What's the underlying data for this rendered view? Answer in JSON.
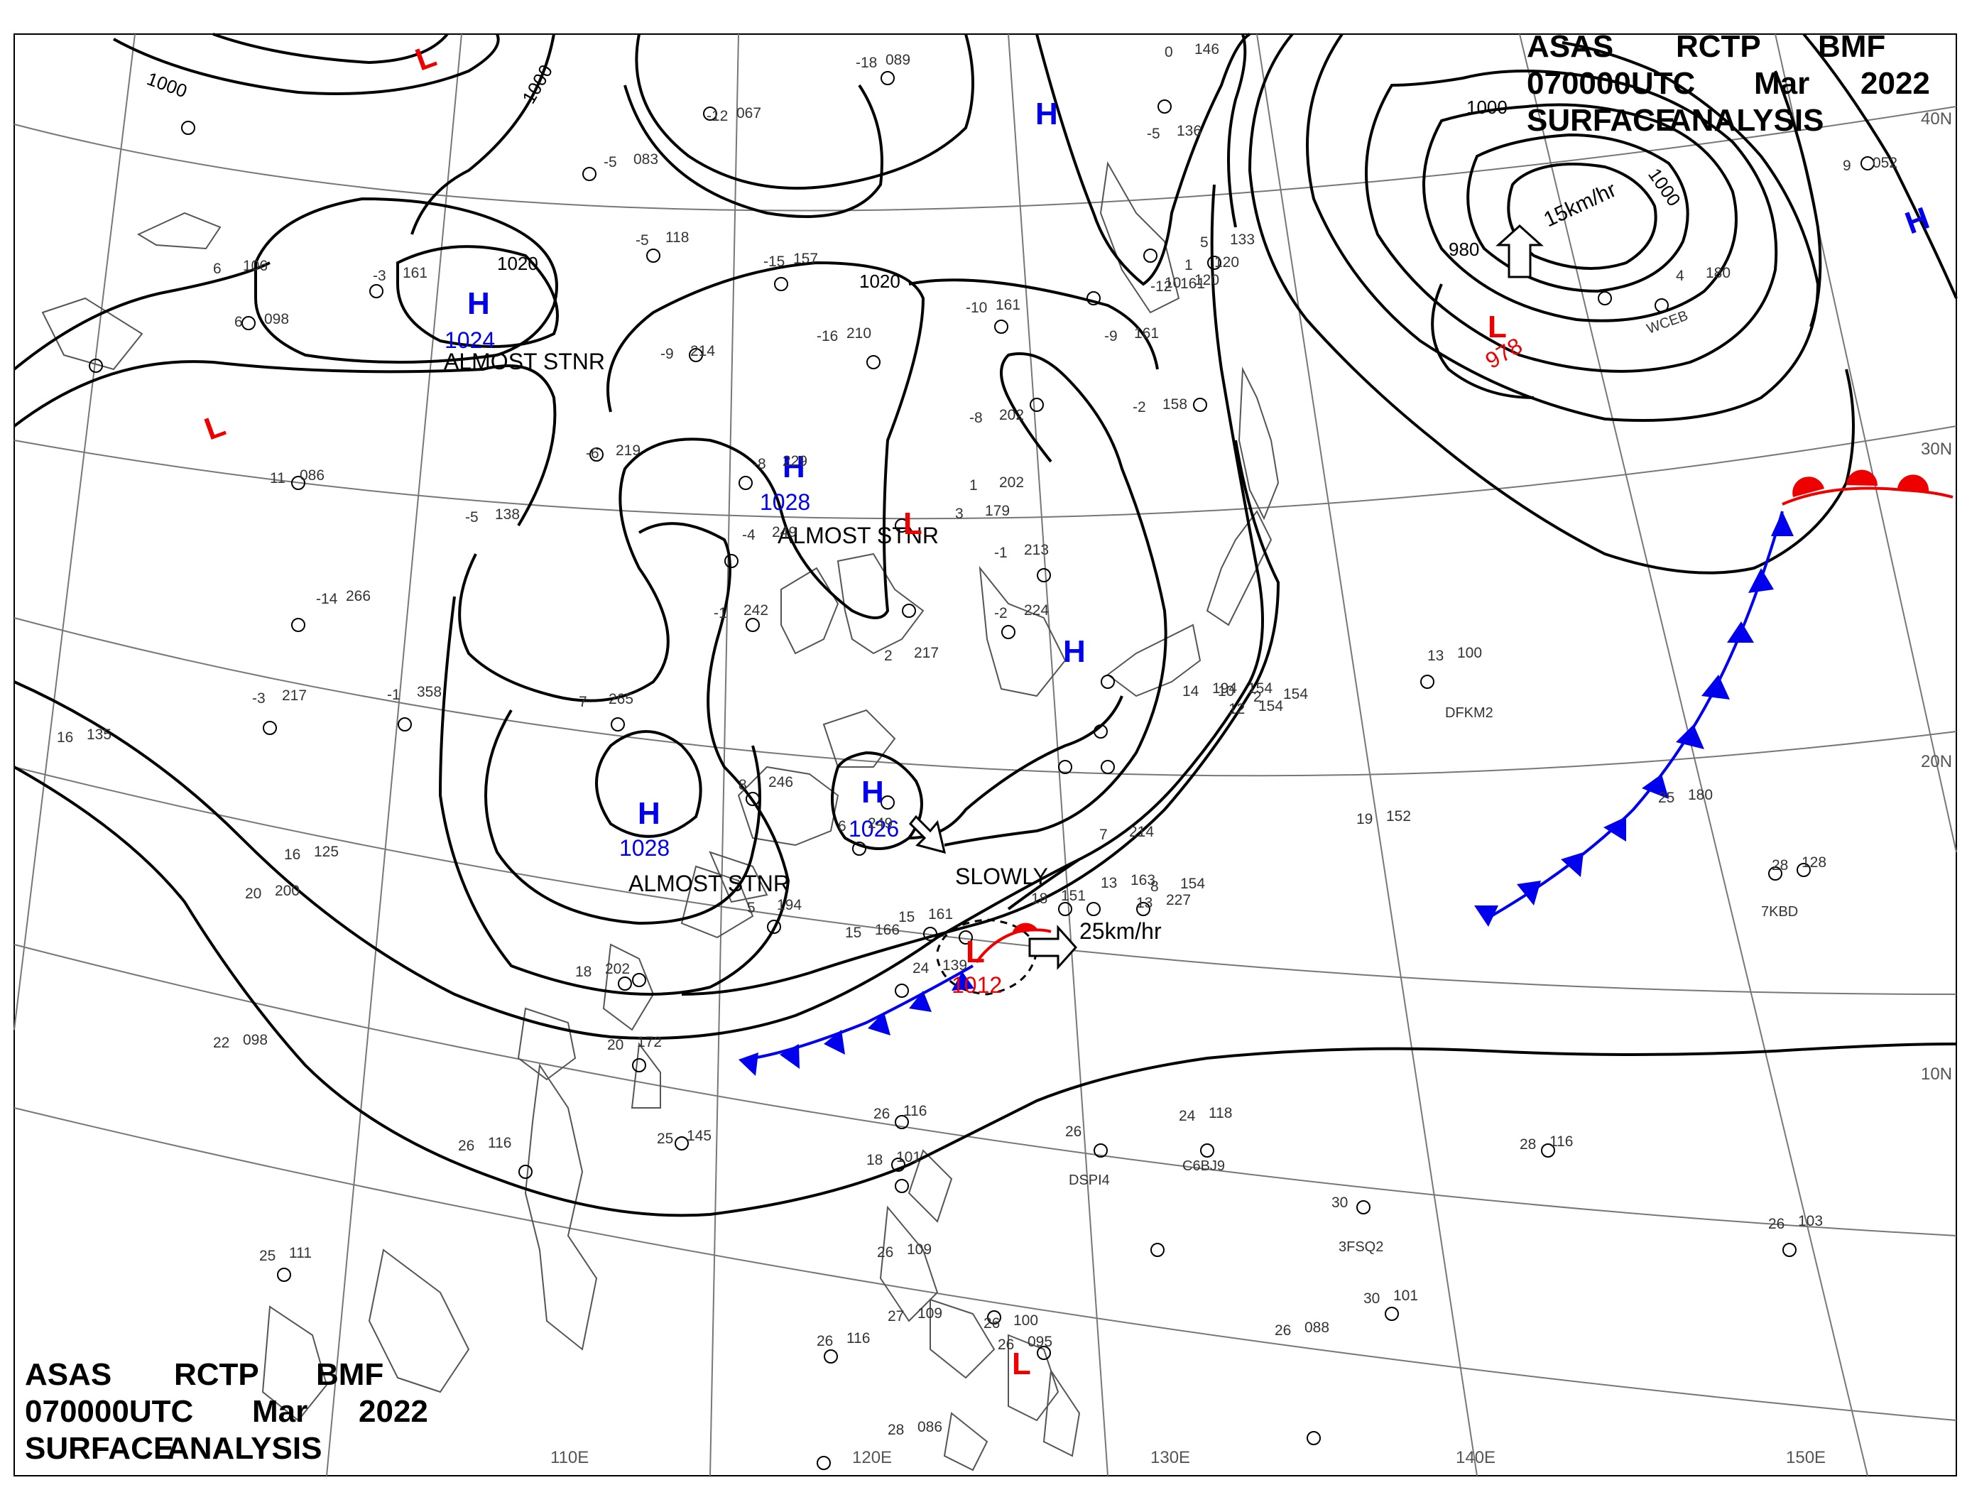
{
  "header": {
    "line1": [
      "ASAS",
      "RCTP",
      "BMF"
    ],
    "line2": [
      "070000UTC",
      "Mar",
      "2022"
    ],
    "line3": [
      "SURFACE",
      "ANALYSIS"
    ]
  },
  "map": {
    "lon_labels": [
      "110E",
      "120E",
      "130E",
      "140E",
      "150E"
    ],
    "lat_labels": [
      "40N",
      "30N",
      "20N",
      "10N"
    ],
    "isobar_labels": [
      "1000",
      "1000",
      "1000",
      "1000",
      "1020",
      "1020",
      "980"
    ],
    "pressure_centers": [
      {
        "type": "H",
        "value": "1024",
        "note": "ALMOST STNR"
      },
      {
        "type": "H",
        "value": "1028",
        "note": "ALMOST STNR"
      },
      {
        "type": "H",
        "value": "1028",
        "note": "ALMOST STNR"
      },
      {
        "type": "H",
        "value": "1026",
        "note": "SLOWLY"
      },
      {
        "type": "L",
        "value": "978",
        "note": "15km/hr"
      },
      {
        "type": "L",
        "value": "1012",
        "note": "25km/hr"
      },
      {
        "type": "H",
        "value": "",
        "note": ""
      },
      {
        "type": "H",
        "value": "",
        "note": ""
      },
      {
        "type": "H",
        "value": "",
        "note": ""
      },
      {
        "type": "L",
        "value": "",
        "note": ""
      },
      {
        "type": "L",
        "value": "",
        "note": ""
      },
      {
        "type": "L",
        "value": "",
        "note": ""
      },
      {
        "type": "L",
        "value": "",
        "note": ""
      }
    ],
    "stations": [
      {
        "t": "-18",
        "p": "089"
      },
      {
        "t": "-12",
        "p": "067"
      },
      {
        "t": "-5",
        "p": "083"
      },
      {
        "t": "-5",
        "p": "118"
      },
      {
        "t": "-15",
        "p": "157"
      },
      {
        "t": "-3",
        "p": "161"
      },
      {
        "t": "6",
        "p": "106"
      },
      {
        "t": "6",
        "p": "098"
      },
      {
        "t": "-9",
        "p": "214"
      },
      {
        "t": "-16",
        "p": "210"
      },
      {
        "t": "-10",
        "p": "161"
      },
      {
        "t": "-9",
        "p": "161"
      },
      {
        "t": "-12",
        "p": "161"
      },
      {
        "t": "-5",
        "p": "136"
      },
      {
        "t": "0",
        "p": "146"
      },
      {
        "t": "5",
        "p": "133"
      },
      {
        "t": "-8",
        "p": "202"
      },
      {
        "t": "-2",
        "p": "158"
      },
      {
        "t": "-6",
        "p": "219"
      },
      {
        "t": "-8",
        "p": "229"
      },
      {
        "t": "-4",
        "p": "249"
      },
      {
        "t": "-1",
        "p": "213"
      },
      {
        "t": "-5",
        "p": "138"
      },
      {
        "t": "11",
        "p": "086"
      },
      {
        "t": "-14",
        "p": "266"
      },
      {
        "t": "-1",
        "p": "242"
      },
      {
        "t": "-2",
        "p": "224"
      },
      {
        "t": "2",
        "p": "217"
      },
      {
        "t": "-3",
        "p": "217"
      },
      {
        "t": "-1",
        "p": "358"
      },
      {
        "t": "7",
        "p": "265"
      },
      {
        "t": "16",
        "p": "135"
      },
      {
        "t": "16",
        "p": "125"
      },
      {
        "t": "8",
        "p": "246"
      },
      {
        "t": "6",
        "p": "249"
      },
      {
        "t": "7",
        "p": "214"
      },
      {
        "t": "5",
        "p": "194"
      },
      {
        "t": "13",
        "p": "163"
      },
      {
        "t": "13",
        "p": "227"
      },
      {
        "t": "15",
        "p": "161"
      },
      {
        "t": "18",
        "p": "151"
      },
      {
        "t": "8",
        "p": "154"
      },
      {
        "t": "15",
        "p": "166"
      },
      {
        "t": "24",
        "p": "139"
      },
      {
        "t": "20",
        "p": "172"
      },
      {
        "t": "18",
        "p": "202"
      },
      {
        "t": "22",
        "p": "098"
      },
      {
        "t": "25",
        "p": "145"
      },
      {
        "t": "26",
        "p": "116"
      },
      {
        "t": "26",
        "p": "116"
      },
      {
        "t": "18",
        "p": "101"
      },
      {
        "t": "26",
        "p": "109"
      },
      {
        "t": "27",
        "p": "109"
      },
      {
        "t": "26",
        "p": "100"
      },
      {
        "t": "26",
        "p": "095"
      },
      {
        "t": "26",
        "p": "116"
      },
      {
        "t": "28",
        "p": "086"
      },
      {
        "t": "25",
        "p": "111"
      },
      {
        "t": "26",
        "p": "088"
      },
      {
        "t": "30",
        "p": "101"
      },
      {
        "t": "30",
        "p": ""
      },
      {
        "t": "28",
        "p": "116"
      },
      {
        "t": "24",
        "p": "118"
      },
      {
        "t": "26",
        "p": ""
      },
      {
        "t": "19",
        "p": "152"
      },
      {
        "t": "25",
        "p": "180"
      },
      {
        "t": "13",
        "p": "100"
      },
      {
        "t": "28",
        "p": "128"
      },
      {
        "t": "26",
        "p": "103"
      },
      {
        "t": "12",
        "p": "154"
      },
      {
        "t": "2",
        "p": "154"
      },
      {
        "t": "10",
        "p": "154"
      },
      {
        "t": "14",
        "p": "194"
      },
      {
        "t": "10",
        "p": "120"
      },
      {
        "t": "1",
        "p": "120"
      },
      {
        "t": "4",
        "p": "180"
      },
      {
        "t": "9",
        "p": "052"
      },
      {
        "t": "3",
        "p": "179"
      },
      {
        "t": "20",
        "p": "200"
      },
      {
        "t": "1",
        "p": "202"
      }
    ],
    "ship_ids": [
      "DSPI4",
      "C6BJ9",
      "3FSQ2",
      "DFKM2",
      "7KBD",
      "WCEB"
    ]
  },
  "colors": {
    "high": "#0000ee",
    "low": "#ee0000",
    "cold_front": "#0000ee",
    "warm_front": "#ee0000",
    "isobar": "#000000",
    "coast": "#555555"
  }
}
